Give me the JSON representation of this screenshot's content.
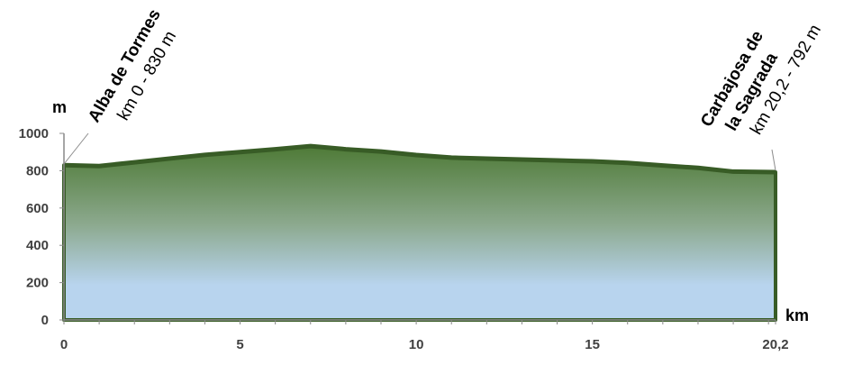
{
  "chart_data": {
    "type": "area",
    "title": "",
    "xlabel": "km",
    "ylabel": "m",
    "xlim": [
      0,
      20.2
    ],
    "ylim": [
      0,
      1000
    ],
    "x_ticks": [
      0,
      5,
      10,
      15,
      20.2
    ],
    "x_tick_labels": [
      "0",
      "5",
      "10",
      "15",
      "20,2"
    ],
    "y_ticks": [
      0,
      200,
      400,
      600,
      800,
      1000
    ],
    "y_tick_labels": [
      "0",
      "200",
      "400",
      "600",
      "800",
      "1000"
    ],
    "grid": false,
    "series": [
      {
        "x": [
          0,
          1,
          2,
          3,
          4,
          5,
          6,
          7,
          8,
          9,
          10,
          11,
          12,
          13,
          14,
          15,
          16,
          17,
          18,
          19,
          20.2
        ],
        "y": [
          830,
          825,
          845,
          865,
          885,
          900,
          915,
          932,
          915,
          903,
          884,
          870,
          865,
          860,
          855,
          850,
          842,
          828,
          815,
          795,
          792
        ]
      }
    ],
    "annotations": [
      {
        "name": "Alba de Tormes",
        "info": "km 0 - 830 m",
        "km": 0,
        "elevation": 830
      },
      {
        "name_line1": "Carbajosa de",
        "name_line2": "la Sagrada",
        "info": "km 20,2 - 792 m",
        "km": 20.2,
        "elevation": 792
      }
    ],
    "colors": {
      "fill_top": "#4e7a36",
      "fill_mid": "#8ca98e",
      "fill_bottom": "#b8d4ee",
      "outline": "#385c26",
      "axis": "#888888",
      "tick_text": "#404040"
    }
  }
}
